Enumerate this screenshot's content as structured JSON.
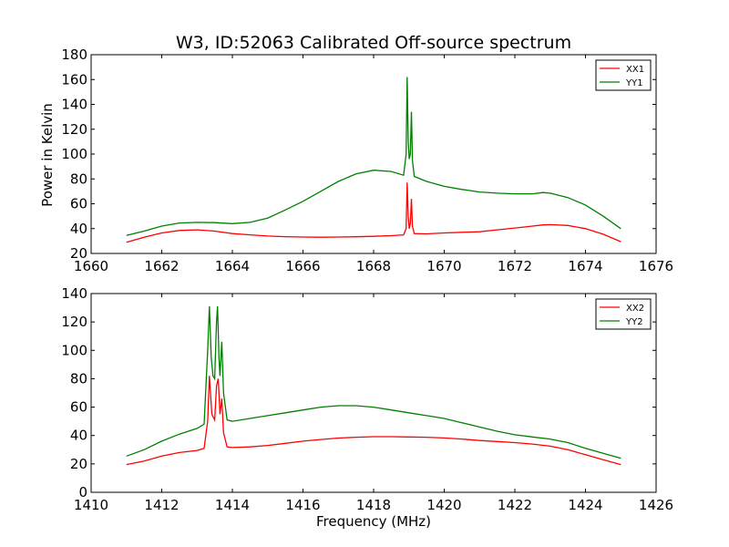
{
  "chart_data": [
    {
      "type": "line",
      "title": "W3, ID:52063 Calibrated Off-source spectrum",
      "xlabel": "",
      "ylabel": "Power in Kelvin",
      "xlim": [
        1660,
        1676
      ],
      "ylim": [
        20,
        180
      ],
      "xticks": [
        "1660",
        "1662",
        "1664",
        "1666",
        "1668",
        "1670",
        "1672",
        "1674",
        "1676"
      ],
      "yticks": [
        "20",
        "40",
        "60",
        "80",
        "100",
        "120",
        "140",
        "160",
        "180"
      ],
      "legend": "top-right",
      "series": [
        {
          "name": "XX1",
          "color": "#ff0000",
          "points": [
            [
              1661.0,
              29
            ],
            [
              1661.5,
              33
            ],
            [
              1662.0,
              36.5
            ],
            [
              1662.5,
              38.5
            ],
            [
              1663.0,
              39
            ],
            [
              1663.5,
              38
            ],
            [
              1664.0,
              36
            ],
            [
              1664.5,
              35
            ],
            [
              1665.0,
              34
            ],
            [
              1665.5,
              33.5
            ],
            [
              1666.0,
              33.2
            ],
            [
              1666.5,
              33.1
            ],
            [
              1667.0,
              33.2
            ],
            [
              1667.5,
              33.4
            ],
            [
              1668.0,
              33.8
            ],
            [
              1668.5,
              34.3
            ],
            [
              1668.85,
              35
            ],
            [
              1668.92,
              40
            ],
            [
              1668.95,
              77
            ],
            [
              1668.98,
              50
            ],
            [
              1669.01,
              40
            ],
            [
              1669.04,
              44
            ],
            [
              1669.07,
              64
            ],
            [
              1669.1,
              42
            ],
            [
              1669.15,
              36
            ],
            [
              1669.5,
              35.8
            ],
            [
              1670.0,
              36.5
            ],
            [
              1670.5,
              37
            ],
            [
              1671.0,
              37.5
            ],
            [
              1671.5,
              39
            ],
            [
              1672.0,
              40.5
            ],
            [
              1672.5,
              42
            ],
            [
              1672.8,
              43
            ],
            [
              1673.0,
              43.2
            ],
            [
              1673.5,
              42.5
            ],
            [
              1674.0,
              40
            ],
            [
              1674.5,
              35.5
            ],
            [
              1675.0,
              29.5
            ]
          ]
        },
        {
          "name": "YY1",
          "color": "#008000",
          "points": [
            [
              1661.0,
              34.5
            ],
            [
              1661.5,
              38
            ],
            [
              1662.0,
              42
            ],
            [
              1662.5,
              44.5
            ],
            [
              1663.0,
              45
            ],
            [
              1663.5,
              44.8
            ],
            [
              1664.0,
              44
            ],
            [
              1664.5,
              45
            ],
            [
              1665.0,
              48.5
            ],
            [
              1665.5,
              55
            ],
            [
              1666.0,
              62
            ],
            [
              1666.5,
              70
            ],
            [
              1667.0,
              78
            ],
            [
              1667.5,
              84
            ],
            [
              1668.0,
              87
            ],
            [
              1668.5,
              86
            ],
            [
              1668.85,
              83
            ],
            [
              1668.92,
              100
            ],
            [
              1668.95,
              162
            ],
            [
              1668.98,
              110
            ],
            [
              1669.01,
              96
            ],
            [
              1669.04,
              100
            ],
            [
              1669.07,
              134
            ],
            [
              1669.1,
              95
            ],
            [
              1669.15,
              82
            ],
            [
              1669.5,
              78
            ],
            [
              1670.0,
              74
            ],
            [
              1670.5,
              71.5
            ],
            [
              1671.0,
              69.5
            ],
            [
              1671.5,
              68.5
            ],
            [
              1672.0,
              68
            ],
            [
              1672.5,
              68
            ],
            [
              1672.8,
              69
            ],
            [
              1673.0,
              68.5
            ],
            [
              1673.5,
              65
            ],
            [
              1674.0,
              59
            ],
            [
              1674.5,
              50
            ],
            [
              1675.0,
              40
            ]
          ]
        }
      ]
    },
    {
      "type": "line",
      "title": "",
      "xlabel": "Frequency (MHz)",
      "ylabel": "",
      "xlim": [
        1410,
        1426
      ],
      "ylim": [
        0,
        140
      ],
      "xticks": [
        "1410",
        "1412",
        "1414",
        "1416",
        "1418",
        "1420",
        "1422",
        "1424",
        "1426"
      ],
      "yticks": [
        "0",
        "20",
        "40",
        "60",
        "80",
        "100",
        "120",
        "140"
      ],
      "legend": "top-right",
      "series": [
        {
          "name": "XX2",
          "color": "#ff0000",
          "points": [
            [
              1411.0,
              19.5
            ],
            [
              1411.5,
              22
            ],
            [
              1412.0,
              25.5
            ],
            [
              1412.5,
              28
            ],
            [
              1413.0,
              29.5
            ],
            [
              1413.2,
              31
            ],
            [
              1413.3,
              50
            ],
            [
              1413.35,
              82
            ],
            [
              1413.42,
              55
            ],
            [
              1413.5,
              51
            ],
            [
              1413.55,
              75
            ],
            [
              1413.6,
              80
            ],
            [
              1413.65,
              55
            ],
            [
              1413.7,
              66
            ],
            [
              1413.75,
              42
            ],
            [
              1413.85,
              32
            ],
            [
              1414.0,
              31.5
            ],
            [
              1414.5,
              32
            ],
            [
              1415.0,
              33
            ],
            [
              1415.5,
              34.5
            ],
            [
              1416.0,
              36
            ],
            [
              1416.5,
              37.2
            ],
            [
              1417.0,
              38.2
            ],
            [
              1417.5,
              38.8
            ],
            [
              1418.0,
              39.2
            ],
            [
              1418.5,
              39.2
            ],
            [
              1419.0,
              39
            ],
            [
              1419.5,
              38.8
            ],
            [
              1420.0,
              38.3
            ],
            [
              1420.5,
              37.5
            ],
            [
              1421.0,
              36.5
            ],
            [
              1421.5,
              35.8
            ],
            [
              1422.0,
              35
            ],
            [
              1422.5,
              34
            ],
            [
              1423.0,
              32.5
            ],
            [
              1423.5,
              30
            ],
            [
              1424.0,
              26.5
            ],
            [
              1424.5,
              23
            ],
            [
              1425.0,
              19.5
            ]
          ]
        },
        {
          "name": "YY2",
          "color": "#008000",
          "points": [
            [
              1411.0,
              25.5
            ],
            [
              1411.5,
              30
            ],
            [
              1412.0,
              36
            ],
            [
              1412.5,
              41
            ],
            [
              1413.0,
              45
            ],
            [
              1413.2,
              48
            ],
            [
              1413.3,
              100
            ],
            [
              1413.35,
              131
            ],
            [
              1413.4,
              95
            ],
            [
              1413.45,
              82
            ],
            [
              1413.5,
              80
            ],
            [
              1413.55,
              120
            ],
            [
              1413.58,
              131
            ],
            [
              1413.62,
              95
            ],
            [
              1413.65,
              82
            ],
            [
              1413.7,
              106
            ],
            [
              1413.75,
              70
            ],
            [
              1413.85,
              51
            ],
            [
              1414.0,
              50
            ],
            [
              1414.5,
              52
            ],
            [
              1415.0,
              54
            ],
            [
              1415.5,
              56
            ],
            [
              1416.0,
              58
            ],
            [
              1416.5,
              60
            ],
            [
              1417.0,
              61
            ],
            [
              1417.5,
              61
            ],
            [
              1418.0,
              60
            ],
            [
              1418.5,
              58
            ],
            [
              1419.0,
              56
            ],
            [
              1419.5,
              54
            ],
            [
              1420.0,
              52
            ],
            [
              1420.5,
              49
            ],
            [
              1421.0,
              46
            ],
            [
              1421.5,
              43
            ],
            [
              1422.0,
              40.5
            ],
            [
              1422.5,
              39
            ],
            [
              1423.0,
              37.5
            ],
            [
              1423.5,
              35
            ],
            [
              1424.0,
              31
            ],
            [
              1424.5,
              27.5
            ],
            [
              1425.0,
              24
            ]
          ]
        }
      ]
    }
  ]
}
